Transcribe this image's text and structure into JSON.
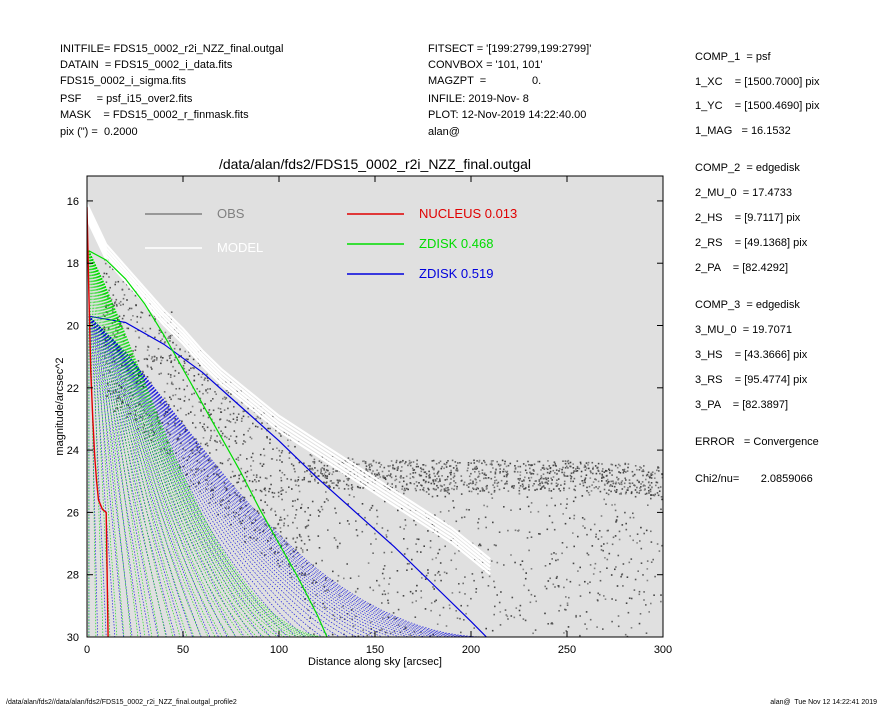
{
  "header_left": [
    "INITFILE= FDS15_0002_r2i_NZZ_final.outgal",
    "DATAIN  = FDS15_0002_i_data.fits",
    "FDS15_0002_i_sigma.fits",
    "PSF     = psf_i15_over2.fits",
    "MASK    = FDS15_0002_r_finmask.fits",
    "pix (\") =  0.2000"
  ],
  "header_mid": [
    "FITSECT = '[199:2799,199:2799]'",
    "CONVBOX = '101, 101'",
    "MAGZPT  =               0.",
    "INFILE: 2019-Nov- 8",
    "PLOT: 12-Nov-2019 14:22:40.00",
    "alan@"
  ],
  "components": [
    "COMP_1  = psf",
    "1_XC    = [1500.7000] pix",
    "1_YC    = [1500.4690] pix",
    "1_MAG   = 16.1532",
    "COMP_2  = edgedisk",
    "2_MU_0  = 17.4733",
    "2_HS    = [9.7117] pix",
    "2_RS    = [49.1368] pix",
    "2_PA    = [82.4292]",
    "COMP_3  = edgedisk",
    "3_MU_0  = 19.7071",
    "3_HS    = [43.3666] pix",
    "3_RS    = [95.4774] pix",
    "3_PA    = [82.3897]",
    "ERROR   = Convergence",
    "Chi2/nu=       2.0859066"
  ],
  "footer_left": "/data/alan/fds2//data/alan/fds2/FDS15_0002_r2i_NZZ_final.outgal_profile2",
  "footer_right": "alan@  Tue Nov 12 14:22:41 2019",
  "colors": {
    "plot_bg": "#e0e0e0",
    "obs": "#808080",
    "model": "#ffffff",
    "nucleus": "#e00000",
    "zdisk1": "#00dd00",
    "zdisk2": "#0000dd"
  },
  "chart_data": {
    "type": "scatter",
    "title": "/data/alan/fds2/FDS15_0002_r2i_NZZ_final.outgal",
    "xlabel": "Distance along sky [arcsec]",
    "ylabel": "magnitude/arcsec^2",
    "xlim": [
      0,
      300
    ],
    "ylim": [
      30,
      15.2
    ],
    "y_inverted": true,
    "x_ticks": [
      0,
      50,
      100,
      150,
      200,
      250,
      300
    ],
    "y_ticks": [
      16,
      18,
      20,
      22,
      24,
      26,
      28,
      30
    ],
    "grid": false,
    "legend_placement": "top",
    "legend": [
      {
        "name": "OBS",
        "color": "#808080"
      },
      {
        "name": "MODEL",
        "color": "#ffffff"
      },
      {
        "name": "NUCLEUS",
        "value": "0.013",
        "color": "#e00000"
      },
      {
        "name": "ZDISK",
        "value": "0.468",
        "color": "#00dd00"
      },
      {
        "name": "ZDISK",
        "value": "0.519",
        "color": "#0000dd"
      }
    ],
    "series": [
      {
        "name": "OBS",
        "color": "#808080",
        "x": [
          8,
          12,
          20,
          30,
          40,
          50,
          60,
          70,
          80,
          90,
          100,
          110,
          115,
          130,
          150,
          170,
          190,
          210,
          230,
          250,
          270,
          290,
          300
        ],
        "y": [
          17.8,
          18.0,
          18.3,
          18.9,
          19.5,
          20.3,
          21.0,
          21.6,
          22.1,
          22.6,
          23.1,
          23.5,
          24.6,
          24.7,
          24.8,
          24.8,
          24.8,
          24.8,
          24.8,
          24.8,
          24.9,
          24.9,
          25.0
        ]
      },
      {
        "name": "MODEL",
        "color": "#ffffff",
        "x": [
          0,
          10,
          20,
          30,
          40,
          50,
          60,
          70,
          80,
          90,
          100,
          110,
          120,
          130,
          140,
          150,
          160,
          170,
          180,
          190,
          200,
          210
        ],
        "y": [
          16.1,
          17.4,
          18.1,
          18.8,
          19.5,
          20.1,
          20.8,
          21.4,
          21.9,
          22.4,
          22.9,
          23.3,
          23.7,
          24.1,
          24.5,
          24.9,
          25.3,
          25.7,
          26.1,
          26.5,
          27.0,
          27.5
        ]
      },
      {
        "name": "NUCLEUS",
        "color": "#e00000",
        "x": [
          0,
          1,
          2,
          3,
          4,
          5,
          6,
          8,
          10,
          11
        ],
        "y": [
          16.2,
          19.0,
          21.5,
          23.0,
          24.2,
          25.0,
          25.6,
          25.9,
          26.0,
          30.0
        ]
      },
      {
        "name": "ZDISK 0.468",
        "color": "#00dd00",
        "x": [
          1,
          10,
          20,
          30,
          40,
          50,
          60,
          70,
          80,
          90,
          100,
          110,
          120,
          125
        ],
        "y": [
          17.6,
          17.9,
          18.5,
          19.3,
          20.3,
          21.4,
          22.5,
          23.6,
          24.7,
          25.9,
          27.0,
          28.1,
          29.3,
          30.0
        ]
      },
      {
        "name": "ZDISK 0.519",
        "color": "#0000dd",
        "x": [
          1,
          20,
          40,
          60,
          80,
          100,
          120,
          140,
          160,
          180,
          200,
          208
        ],
        "y": [
          19.7,
          19.9,
          20.6,
          21.5,
          22.6,
          23.7,
          24.9,
          26.0,
          27.1,
          28.3,
          29.5,
          30.0
        ]
      }
    ]
  }
}
